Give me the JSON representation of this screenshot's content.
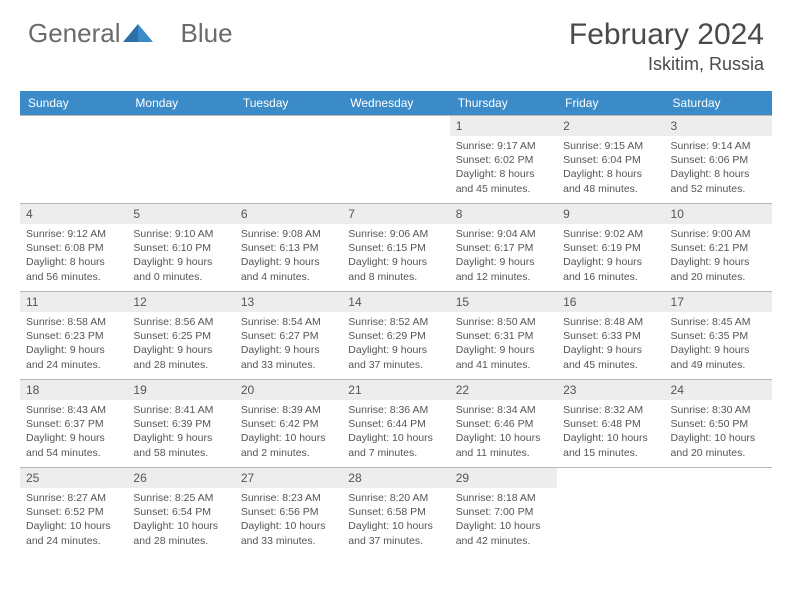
{
  "brand": {
    "part1": "General",
    "part2": "Blue"
  },
  "logo_colors": {
    "text": "#6b6b6b",
    "tri1": "#2f6fa8",
    "tri2": "#3b8bc8"
  },
  "title": "February 2024",
  "location": "Iskitim, Russia",
  "header_bg": "#3b8bc8",
  "daynum_bg": "#ededed",
  "border_color": "#b8b8b8",
  "text_color": "#555555",
  "day_headers": [
    "Sunday",
    "Monday",
    "Tuesday",
    "Wednesday",
    "Thursday",
    "Friday",
    "Saturday"
  ],
  "weeks": [
    [
      null,
      null,
      null,
      null,
      {
        "n": "1",
        "sunrise": "9:17 AM",
        "sunset": "6:02 PM",
        "daylight": "8 hours and 45 minutes."
      },
      {
        "n": "2",
        "sunrise": "9:15 AM",
        "sunset": "6:04 PM",
        "daylight": "8 hours and 48 minutes."
      },
      {
        "n": "3",
        "sunrise": "9:14 AM",
        "sunset": "6:06 PM",
        "daylight": "8 hours and 52 minutes."
      }
    ],
    [
      {
        "n": "4",
        "sunrise": "9:12 AM",
        "sunset": "6:08 PM",
        "daylight": "8 hours and 56 minutes."
      },
      {
        "n": "5",
        "sunrise": "9:10 AM",
        "sunset": "6:10 PM",
        "daylight": "9 hours and 0 minutes."
      },
      {
        "n": "6",
        "sunrise": "9:08 AM",
        "sunset": "6:13 PM",
        "daylight": "9 hours and 4 minutes."
      },
      {
        "n": "7",
        "sunrise": "9:06 AM",
        "sunset": "6:15 PM",
        "daylight": "9 hours and 8 minutes."
      },
      {
        "n": "8",
        "sunrise": "9:04 AM",
        "sunset": "6:17 PM",
        "daylight": "9 hours and 12 minutes."
      },
      {
        "n": "9",
        "sunrise": "9:02 AM",
        "sunset": "6:19 PM",
        "daylight": "9 hours and 16 minutes."
      },
      {
        "n": "10",
        "sunrise": "9:00 AM",
        "sunset": "6:21 PM",
        "daylight": "9 hours and 20 minutes."
      }
    ],
    [
      {
        "n": "11",
        "sunrise": "8:58 AM",
        "sunset": "6:23 PM",
        "daylight": "9 hours and 24 minutes."
      },
      {
        "n": "12",
        "sunrise": "8:56 AM",
        "sunset": "6:25 PM",
        "daylight": "9 hours and 28 minutes."
      },
      {
        "n": "13",
        "sunrise": "8:54 AM",
        "sunset": "6:27 PM",
        "daylight": "9 hours and 33 minutes."
      },
      {
        "n": "14",
        "sunrise": "8:52 AM",
        "sunset": "6:29 PM",
        "daylight": "9 hours and 37 minutes."
      },
      {
        "n": "15",
        "sunrise": "8:50 AM",
        "sunset": "6:31 PM",
        "daylight": "9 hours and 41 minutes."
      },
      {
        "n": "16",
        "sunrise": "8:48 AM",
        "sunset": "6:33 PM",
        "daylight": "9 hours and 45 minutes."
      },
      {
        "n": "17",
        "sunrise": "8:45 AM",
        "sunset": "6:35 PM",
        "daylight": "9 hours and 49 minutes."
      }
    ],
    [
      {
        "n": "18",
        "sunrise": "8:43 AM",
        "sunset": "6:37 PM",
        "daylight": "9 hours and 54 minutes."
      },
      {
        "n": "19",
        "sunrise": "8:41 AM",
        "sunset": "6:39 PM",
        "daylight": "9 hours and 58 minutes."
      },
      {
        "n": "20",
        "sunrise": "8:39 AM",
        "sunset": "6:42 PM",
        "daylight": "10 hours and 2 minutes."
      },
      {
        "n": "21",
        "sunrise": "8:36 AM",
        "sunset": "6:44 PM",
        "daylight": "10 hours and 7 minutes."
      },
      {
        "n": "22",
        "sunrise": "8:34 AM",
        "sunset": "6:46 PM",
        "daylight": "10 hours and 11 minutes."
      },
      {
        "n": "23",
        "sunrise": "8:32 AM",
        "sunset": "6:48 PM",
        "daylight": "10 hours and 15 minutes."
      },
      {
        "n": "24",
        "sunrise": "8:30 AM",
        "sunset": "6:50 PM",
        "daylight": "10 hours and 20 minutes."
      }
    ],
    [
      {
        "n": "25",
        "sunrise": "8:27 AM",
        "sunset": "6:52 PM",
        "daylight": "10 hours and 24 minutes."
      },
      {
        "n": "26",
        "sunrise": "8:25 AM",
        "sunset": "6:54 PM",
        "daylight": "10 hours and 28 minutes."
      },
      {
        "n": "27",
        "sunrise": "8:23 AM",
        "sunset": "6:56 PM",
        "daylight": "10 hours and 33 minutes."
      },
      {
        "n": "28",
        "sunrise": "8:20 AM",
        "sunset": "6:58 PM",
        "daylight": "10 hours and 37 minutes."
      },
      {
        "n": "29",
        "sunrise": "8:18 AM",
        "sunset": "7:00 PM",
        "daylight": "10 hours and 42 minutes."
      },
      null,
      null
    ]
  ],
  "labels": {
    "sunrise": "Sunrise:",
    "sunset": "Sunset:",
    "daylight": "Daylight:"
  }
}
